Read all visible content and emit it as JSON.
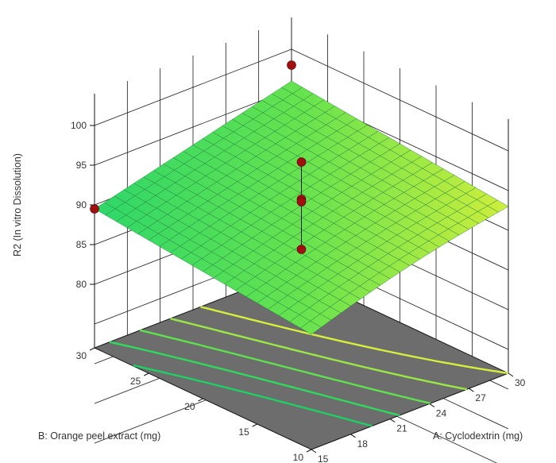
{
  "chart_data": {
    "type": "surface3d",
    "title": "",
    "zlabel": "R2 (In vitro Dissolution)",
    "xlabel": "A: Cyclodextrin (mg)",
    "ylabel": "B: Orange peel extract (mg)",
    "x_range": [
      15,
      30
    ],
    "y_range": [
      10,
      30
    ],
    "z_range": [
      80,
      100
    ],
    "x_ticks": [
      "15",
      "18",
      "21",
      "24",
      "27",
      "30"
    ],
    "y_ticks": [
      "10",
      "15",
      "20",
      "25",
      "30"
    ],
    "z_ticks": [
      "80",
      "85",
      "90",
      "95",
      "100"
    ],
    "surface": {
      "corners": {
        "x15_y10": 86.5,
        "x30_y10": 93.0,
        "x15_y30": 89.5,
        "x30_y30": 96.0
      }
    },
    "design_points": [
      {
        "x": 15,
        "y": 30,
        "z": 89.5
      },
      {
        "x": 30,
        "y": 30,
        "z": 98.0
      },
      {
        "x": 22.5,
        "y": 20,
        "z": 97.0
      },
      {
        "x": 22.5,
        "y": 20,
        "z": 92.3
      },
      {
        "x": 22.5,
        "y": 20,
        "z": 92.0
      },
      {
        "x": 22.5,
        "y": 20,
        "z": 86.0
      }
    ],
    "floor_contours": [
      {
        "level": 89
      },
      {
        "level": 90
      },
      {
        "level": 91
      },
      {
        "level": 92
      },
      {
        "level": 93
      }
    ],
    "grid": true,
    "colors": {
      "surface_low": "#2bd66b",
      "surface_high": "#d8ef3a",
      "floor": "#6d6d6d",
      "point": "#a01010"
    }
  }
}
